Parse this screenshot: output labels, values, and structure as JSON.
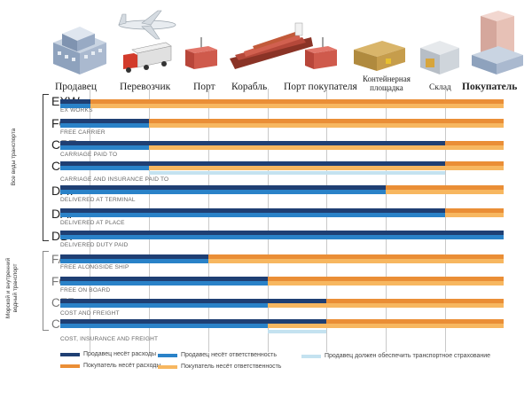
{
  "colors": {
    "seller_cost": "#1f3f73",
    "seller_resp": "#2a82c8",
    "buyer_cost": "#ea8e36",
    "buyer_resp": "#f7b760",
    "insurance": "#c4e2f0"
  },
  "header": {
    "seller": "Продавец",
    "carrier": "Перевозчик",
    "port": "Порт",
    "ship": "Корабль",
    "buyer_port": "Порт покупателя",
    "container_yard_1": "Контейнерная",
    "container_yard_2": "площадка",
    "warehouse": "Склад",
    "buyer": "Покупатель"
  },
  "group_labels": {
    "all_transport": "Все виды транспорта",
    "sea_1": "Морской и внутренний",
    "sea_2": "водный транспорт"
  },
  "terms": [
    {
      "code": "EXW",
      "name": "EX WORKS"
    },
    {
      "code": "FCA",
      "name": "FREE CARRIER"
    },
    {
      "code": "CPT",
      "name": "CARRIAGE PAID TO"
    },
    {
      "code": "CIP",
      "name": "CARRIAGE AND INSURANCE PAID TO"
    },
    {
      "code": "DAT",
      "name": "DELIVERED AT TERMINAL"
    },
    {
      "code": "DAP",
      "name": "DELIVERED AT PLACE"
    },
    {
      "code": "DDP",
      "name": "DELIVERED DUTY PAID"
    },
    {
      "code": "FAS",
      "name": "FREE ALONGSIDE SHIP"
    },
    {
      "code": "FOB",
      "name": "FREE ON BOARD"
    },
    {
      "code": "CFR",
      "name": "COST AND FREIGHT"
    },
    {
      "code": "CIF",
      "name": "COST, INSURANCE AND FREIGHT"
    }
  ],
  "legend": {
    "seller_cost": "Продавец несёт расходы",
    "seller_resp": "Продавец несёт ответственность",
    "insurance": "Продавец должен обеспечить транспортное страхование",
    "buyer_cost": "Покупатель несёт расходы",
    "buyer_resp": "Покупатель несёт ответственность"
  }
}
